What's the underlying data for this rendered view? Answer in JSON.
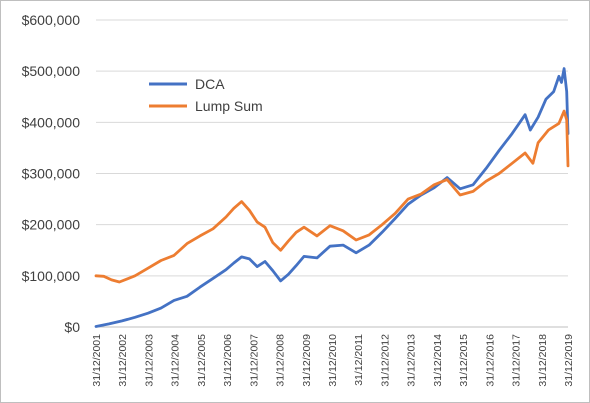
{
  "chart_data": {
    "type": "line",
    "title": "",
    "xlabel": "",
    "ylabel": "",
    "ylim": [
      0,
      600000
    ],
    "y_ticks": [
      "$600,000",
      "$500,000",
      "$400,000",
      "$300,000",
      "$200,000",
      "$100,000",
      "$0"
    ],
    "x_ticks": [
      "31/12/2001",
      "31/12/2002",
      "31/12/2003",
      "31/12/2004",
      "31/12/2005",
      "31/12/2006",
      "31/12/2007",
      "31/12/2008",
      "31/12/2009",
      "31/12/2010",
      "31/12/2011",
      "31/12/2012",
      "31/12/2013",
      "31/12/2014",
      "31/12/2015",
      "31/12/2016",
      "31/12/2017",
      "31/12/2018",
      "31/12/2019"
    ],
    "grid": true,
    "legend_position": "upper-left",
    "series": [
      {
        "name": "DCA",
        "color": "#4472c4",
        "points": [
          [
            2001.0,
            1000
          ],
          [
            2001.5,
            6000
          ],
          [
            2002.0,
            12000
          ],
          [
            2002.5,
            19000
          ],
          [
            2003.0,
            27000
          ],
          [
            2003.5,
            37000
          ],
          [
            2004.0,
            52000
          ],
          [
            2004.5,
            60000
          ],
          [
            2005.0,
            78000
          ],
          [
            2005.5,
            95000
          ],
          [
            2006.0,
            112000
          ],
          [
            2006.3,
            125000
          ],
          [
            2006.6,
            137000
          ],
          [
            2006.9,
            133000
          ],
          [
            2007.2,
            118000
          ],
          [
            2007.5,
            128000
          ],
          [
            2007.8,
            110000
          ],
          [
            2008.1,
            90000
          ],
          [
            2008.4,
            103000
          ],
          [
            2008.7,
            120000
          ],
          [
            2009.0,
            138000
          ],
          [
            2009.5,
            135000
          ],
          [
            2010.0,
            158000
          ],
          [
            2010.5,
            160000
          ],
          [
            2011.0,
            145000
          ],
          [
            2011.5,
            160000
          ],
          [
            2012.0,
            185000
          ],
          [
            2012.5,
            212000
          ],
          [
            2013.0,
            240000
          ],
          [
            2013.5,
            258000
          ],
          [
            2014.0,
            272000
          ],
          [
            2014.5,
            292000
          ],
          [
            2015.0,
            270000
          ],
          [
            2015.5,
            278000
          ],
          [
            2016.0,
            310000
          ],
          [
            2016.5,
            345000
          ],
          [
            2017.0,
            378000
          ],
          [
            2017.3,
            400000
          ],
          [
            2017.5,
            415000
          ],
          [
            2017.7,
            385000
          ],
          [
            2018.0,
            410000
          ],
          [
            2018.3,
            445000
          ],
          [
            2018.6,
            460000
          ],
          [
            2018.8,
            490000
          ],
          [
            2018.9,
            478000
          ],
          [
            2019.0,
            505000
          ],
          [
            2019.1,
            460000
          ],
          [
            2019.15,
            378000
          ]
        ]
      },
      {
        "name": "Lump Sum",
        "color": "#ed7d31",
        "points": [
          [
            2001.0,
            100000
          ],
          [
            2001.3,
            99000
          ],
          [
            2001.6,
            92000
          ],
          [
            2001.9,
            88000
          ],
          [
            2002.2,
            94000
          ],
          [
            2002.5,
            100000
          ],
          [
            2003.0,
            115000
          ],
          [
            2003.5,
            130000
          ],
          [
            2004.0,
            140000
          ],
          [
            2004.5,
            163000
          ],
          [
            2005.0,
            178000
          ],
          [
            2005.5,
            192000
          ],
          [
            2006.0,
            215000
          ],
          [
            2006.3,
            232000
          ],
          [
            2006.6,
            245000
          ],
          [
            2006.9,
            228000
          ],
          [
            2007.2,
            205000
          ],
          [
            2007.5,
            195000
          ],
          [
            2007.8,
            165000
          ],
          [
            2008.1,
            150000
          ],
          [
            2008.4,
            168000
          ],
          [
            2008.7,
            185000
          ],
          [
            2009.0,
            195000
          ],
          [
            2009.5,
            178000
          ],
          [
            2010.0,
            198000
          ],
          [
            2010.5,
            188000
          ],
          [
            2011.0,
            170000
          ],
          [
            2011.5,
            180000
          ],
          [
            2012.0,
            200000
          ],
          [
            2012.5,
            222000
          ],
          [
            2013.0,
            250000
          ],
          [
            2013.5,
            260000
          ],
          [
            2014.0,
            278000
          ],
          [
            2014.5,
            288000
          ],
          [
            2015.0,
            258000
          ],
          [
            2015.5,
            265000
          ],
          [
            2016.0,
            285000
          ],
          [
            2016.5,
            300000
          ],
          [
            2017.0,
            320000
          ],
          [
            2017.5,
            340000
          ],
          [
            2017.8,
            320000
          ],
          [
            2018.0,
            360000
          ],
          [
            2018.4,
            385000
          ],
          [
            2018.8,
            398000
          ],
          [
            2019.0,
            422000
          ],
          [
            2019.1,
            405000
          ],
          [
            2019.15,
            315000
          ]
        ]
      }
    ]
  }
}
